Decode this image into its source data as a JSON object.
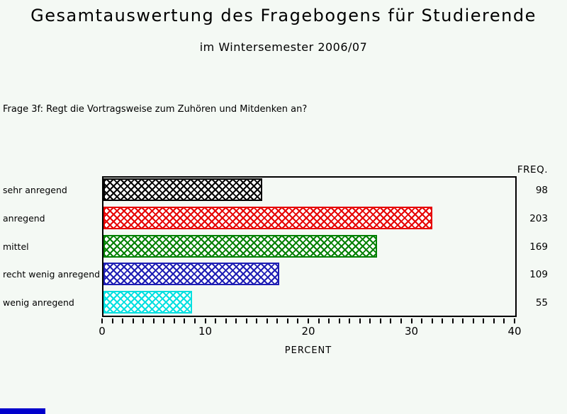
{
  "page": {
    "title": "Gesamtauswertung des Fragebogens für Studierende",
    "subtitle": "im Wintersemester 2006/07",
    "question": "Frage 3f: Regt die Vortragsweise zum Zuhören und Mitdenken an?",
    "background_color": "#f4f9f4",
    "bottom_strip_color": "#0000cc"
  },
  "chart_data": {
    "type": "bar",
    "orientation": "horizontal",
    "title": "Gesamtauswertung des Fragebogens für Studierende",
    "subtitle": "im Wintersemester 2006/07",
    "annotation": "Frage 3f: Regt die Vortragsweise zum Zuhören und Mitdenken an?",
    "categories": [
      "sehr anregend",
      "anregend",
      "mittel",
      "recht wenig anregend",
      "wenig anregend"
    ],
    "series": [
      {
        "name": "PERCENT",
        "values": [
          15.5,
          32.0,
          26.7,
          17.2,
          8.7
        ]
      },
      {
        "name": "FREQ",
        "values": [
          98,
          203,
          169,
          109,
          55
        ]
      }
    ],
    "freq_header": "FREQ.",
    "xlabel": "PERCENT",
    "xlim": [
      0,
      40
    ],
    "x_major_ticks": [
      0,
      10,
      20,
      30,
      40
    ],
    "x_minor_step": 1,
    "grid": false,
    "hatch_style": "diagonal-crosshatch",
    "bar_colors": [
      "#000000",
      "#e60000",
      "#008000",
      "#1e1eb4",
      "#00e0e0"
    ],
    "bar_border": true,
    "frame_color": "#000000"
  }
}
